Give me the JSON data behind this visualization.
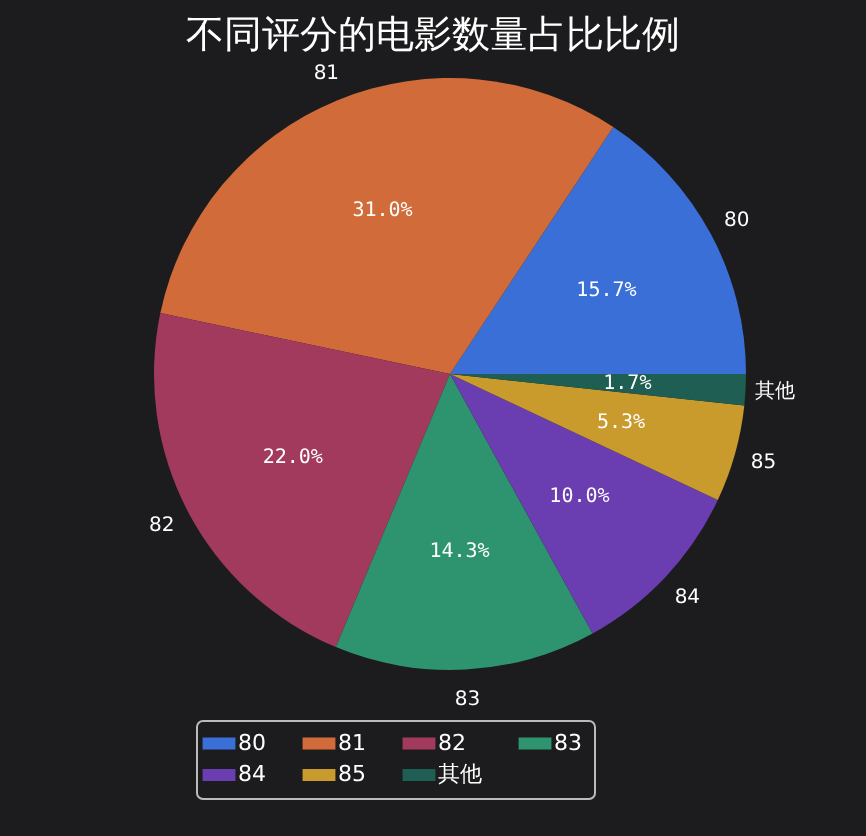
{
  "chart_data": {
    "type": "pie",
    "title": "不同评分的电影数量占比比例",
    "categories": [
      "80",
      "81",
      "82",
      "83",
      "84",
      "85",
      "其他"
    ],
    "values": [
      15.7,
      31.0,
      22.0,
      14.3,
      10.0,
      5.3,
      1.7
    ],
    "value_labels": [
      "15.7%",
      "31.0%",
      "22.0%",
      "14.3%",
      "10.0%",
      "5.3%",
      "1.7%"
    ],
    "colors": [
      "#3a6fd8",
      "#d16c3a",
      "#a23a5e",
      "#2e9470",
      "#6a3db0",
      "#c99a2c",
      "#1f5e52"
    ],
    "legend": "bottom"
  }
}
